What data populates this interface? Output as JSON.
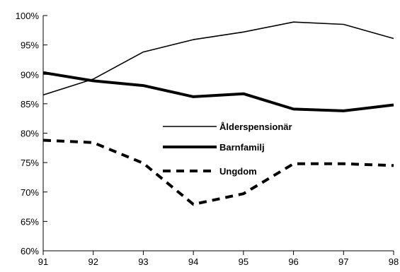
{
  "chart_data": {
    "type": "line",
    "title": "",
    "xlabel": "",
    "ylabel": "",
    "x": [
      "91",
      "92",
      "93",
      "94",
      "95",
      "96",
      "97",
      "98"
    ],
    "ylim": [
      60,
      100
    ],
    "yticks": [
      "60%",
      "65%",
      "70%",
      "75%",
      "80%",
      "85%",
      "90%",
      "95%",
      "100%"
    ],
    "grid": false,
    "legend_position": "center",
    "series": [
      {
        "name": "Ålderspensionär",
        "style": "thin-solid",
        "values": [
          86.5,
          89.2,
          93.8,
          95.9,
          97.2,
          98.9,
          98.5,
          96.1
        ]
      },
      {
        "name": "Barnfamilj",
        "style": "thick-solid",
        "values": [
          90.3,
          88.9,
          88.1,
          86.2,
          86.7,
          84.1,
          83.8,
          84.8
        ]
      },
      {
        "name": "Ungdom",
        "style": "thick-dashed",
        "values": [
          78.8,
          78.4,
          74.9,
          67.9,
          69.7,
          74.8,
          74.8,
          74.5
        ]
      }
    ],
    "colors": {
      "line": "#000000",
      "axis": "#000000"
    }
  }
}
